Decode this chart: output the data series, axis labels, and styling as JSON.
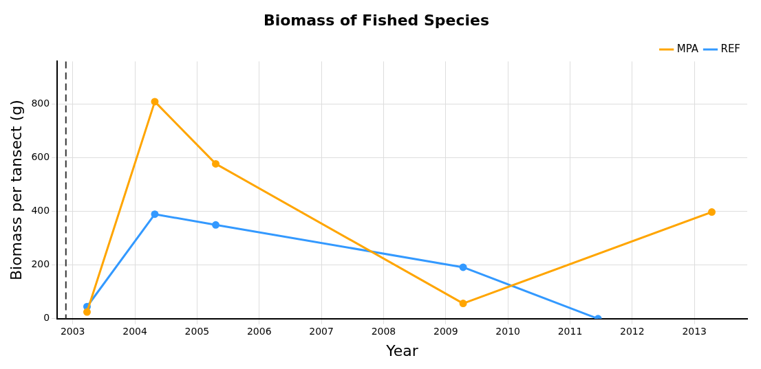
{
  "chart_data": {
    "type": "line",
    "title": "Biomass of Fished Species",
    "xlabel": "Year",
    "ylabel": "Biomass per tansect (g)",
    "series": [
      {
        "name": "MPA",
        "color": "#ffa500",
        "x": [
          2003.23,
          2004.32,
          2005.3,
          2009.28,
          2013.28
        ],
        "values": [
          25,
          810,
          578,
          57,
          398
        ]
      },
      {
        "name": "REF",
        "color": "#3399ff",
        "x": [
          2003.23,
          2004.32,
          2005.3,
          2009.28,
          2011.45
        ],
        "values": [
          45,
          390,
          350,
          192,
          0
        ]
      }
    ],
    "xlim": [
      2002.75,
      2013.85
    ],
    "xticks": [
      2003,
      2004,
      2005,
      2006,
      2007,
      2008,
      2009,
      2010,
      2011,
      2012,
      2013
    ],
    "ylim": [
      0,
      960
    ],
    "yticks": [
      0,
      200,
      400,
      600,
      800
    ],
    "ref_lines": [
      {
        "axis": "x",
        "value": 2002.89,
        "color": "#333333",
        "line_style": "dashed"
      }
    ],
    "grid": true,
    "legend": "top right",
    "marker": "circle",
    "line_style": "solid"
  }
}
